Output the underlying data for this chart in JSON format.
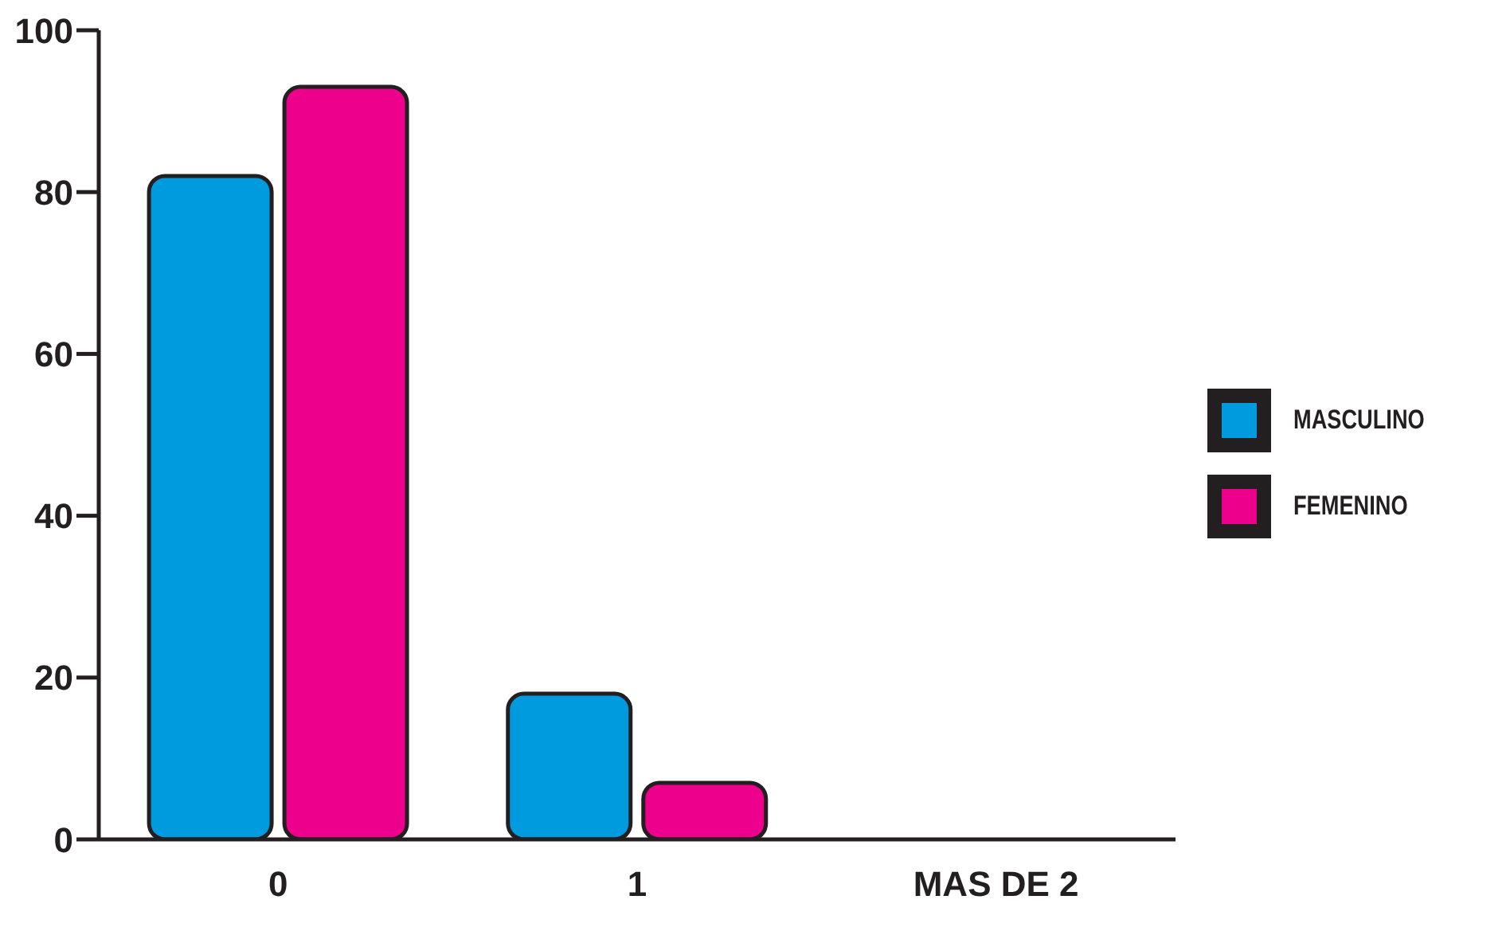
{
  "chart_data": {
    "type": "bar",
    "categories": [
      "0",
      "1",
      "MAS DE 2"
    ],
    "series": [
      {
        "name": "MASCULINO",
        "color": "#009ade",
        "values": [
          82,
          18,
          0
        ]
      },
      {
        "name": "FEMENINO",
        "color": "#ec008c",
        "values": [
          93,
          7,
          0
        ]
      }
    ],
    "ylim": [
      0,
      100
    ],
    "yticks": [
      0,
      20,
      40,
      60,
      80,
      100
    ],
    "grid": false,
    "legend": "right"
  }
}
